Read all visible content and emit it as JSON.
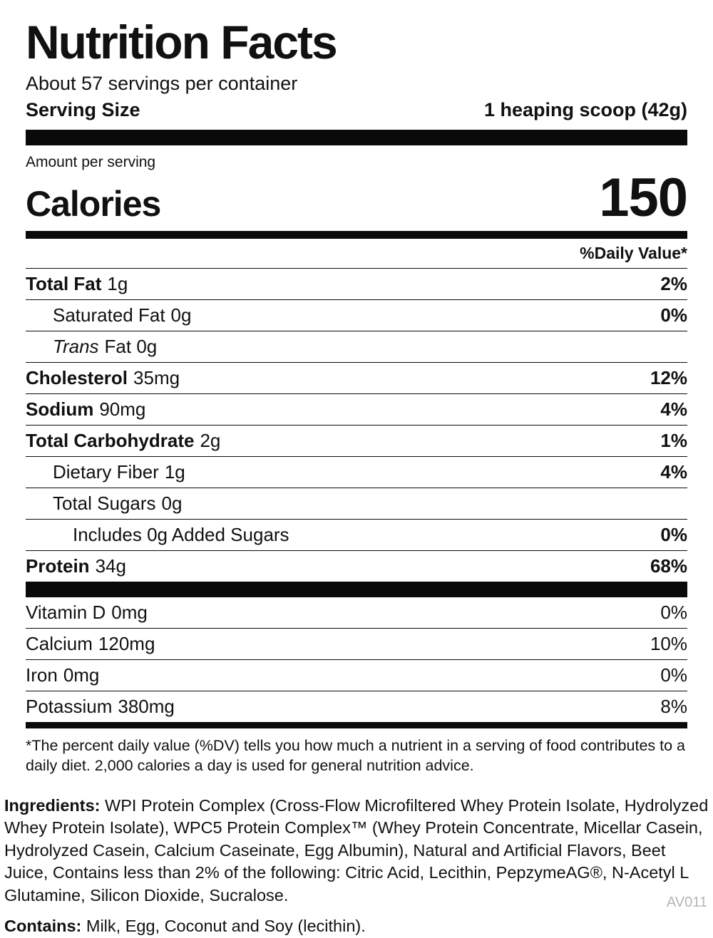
{
  "label": {
    "title": "Nutrition Facts",
    "servings_per_container": "About 57 servings per container",
    "serving_size_label": "Serving Size",
    "serving_size_value": "1 heaping scoop (42g)",
    "amount_per_serving": "Amount per serving",
    "calories_label": "Calories",
    "calories_value": "150",
    "daily_value_header": "%Daily Value*",
    "footnote": "*The percent daily value (%DV) tells you how much a nutrient in a serving of food contributes to a daily diet. 2,000 calories a day is used for general nutrition advice."
  },
  "nutrients": [
    {
      "name": "Total Fat",
      "amount": "1g",
      "dv": "2%"
    },
    {
      "name": "Saturated Fat",
      "amount": "0g",
      "dv": "0%"
    },
    {
      "name": "Trans",
      "amount": "Fat 0g",
      "dv": ""
    },
    {
      "name": "Cholesterol",
      "amount": "35mg",
      "dv": "12%"
    },
    {
      "name": "Sodium",
      "amount": "90mg",
      "dv": "4%"
    },
    {
      "name": "Total Carbohydrate",
      "amount": "2g",
      "dv": "1%"
    },
    {
      "name": "Dietary Fiber",
      "amount": "1g",
      "dv": "4%"
    },
    {
      "name": "Total Sugars",
      "amount": "0g",
      "dv": ""
    },
    {
      "name": "Includes 0g Added Sugars",
      "amount": "",
      "dv": "0%"
    },
    {
      "name": "Protein",
      "amount": "34g",
      "dv": "68%"
    }
  ],
  "micronutrients": [
    {
      "name": "Vitamin D",
      "amount": "0mg",
      "dv": "0%"
    },
    {
      "name": "Calcium",
      "amount": "120mg",
      "dv": "10%"
    },
    {
      "name": "Iron",
      "amount": "0mg",
      "dv": "0%"
    },
    {
      "name": "Potassium",
      "amount": "380mg",
      "dv": "8%"
    }
  ],
  "ingredients": {
    "label": "Ingredients:",
    "text": "WPI Protein Complex (Cross-Flow Microfiltered Whey Protein Isolate, Hydrolyzed Whey Protein Isolate), WPC5 Protein Complex™ (Whey Protein Concentrate, Micellar Casein, Hydrolyzed Casein, Calcium Caseinate, Egg Albumin), Natural and Artificial Flavors, Beet Juice, Contains less than 2% of the following: Citric Acid, Lecithin, PepzymeAG®, N-Acetyl L Glutamine, Silicon Dioxide, Sucralose."
  },
  "contains": {
    "label": "Contains:",
    "text": "Milk, Egg, Coconut and Soy (lecithin)."
  },
  "colors": {
    "ink": "#0a0a0a",
    "code_gray": "#b6b6b6"
  },
  "footer": {
    "code": "AV011"
  }
}
